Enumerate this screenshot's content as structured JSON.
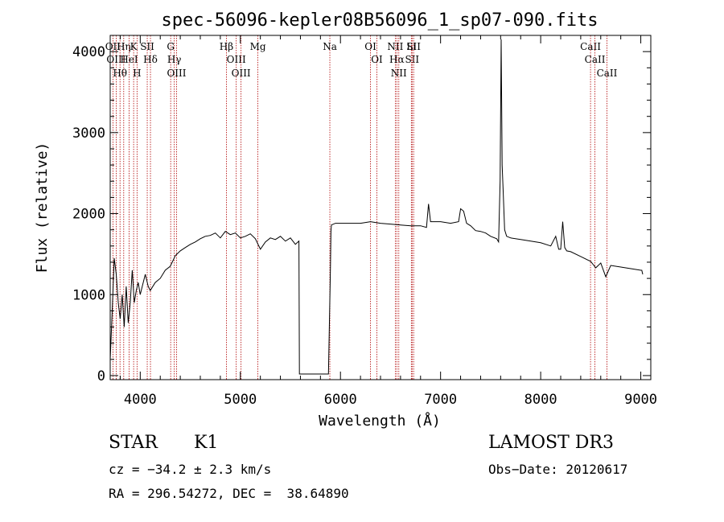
{
  "chart_data": {
    "type": "line",
    "title": "spec-56096-kepler08B56096_1_sp07-090.fits",
    "xlabel": "Wavelength (Å)",
    "ylabel": "Flux (relative)",
    "xlim": [
      3700,
      9100
    ],
    "ylim": [
      -50,
      4200
    ],
    "xticks": [
      4000,
      5000,
      6000,
      7000,
      8000,
      9000
    ],
    "xtick_labels": [
      "4000",
      "5000",
      "6000",
      "7000",
      "8000",
      "9000"
    ],
    "yticks": [
      0,
      1000,
      2000,
      3000,
      4000
    ],
    "ytick_labels": [
      "0",
      "1000",
      "2000",
      "3000",
      "4000"
    ],
    "series": [
      {
        "name": "flux",
        "x": [
          3700,
          3720,
          3740,
          3760,
          3780,
          3800,
          3820,
          3840,
          3860,
          3880,
          3900,
          3920,
          3940,
          3960,
          3980,
          4000,
          4020,
          4050,
          4080,
          4100,
          4150,
          4200,
          4250,
          4300,
          4350,
          4400,
          4450,
          4500,
          4550,
          4600,
          4650,
          4700,
          4750,
          4800,
          4850,
          4900,
          4950,
          5000,
          5050,
          5100,
          5150,
          5200,
          5250,
          5300,
          5350,
          5400,
          5450,
          5500,
          5550,
          5585,
          5590,
          5600,
          5700,
          5800,
          5880,
          5900,
          5905,
          5910,
          5950,
          6000,
          6100,
          6200,
          6300,
          6400,
          6500,
          6600,
          6700,
          6800,
          6860,
          6880,
          6900,
          7000,
          7100,
          7180,
          7200,
          7230,
          7260,
          7300,
          7350,
          7400,
          7450,
          7500,
          7560,
          7580,
          7595,
          7605,
          7615,
          7625,
          7640,
          7660,
          7700,
          7800,
          7900,
          8000,
          8100,
          8150,
          8180,
          8200,
          8220,
          8240,
          8260,
          8300,
          8400,
          8500,
          8550,
          8600,
          8650,
          8700,
          8800,
          8900,
          9000,
          9010,
          9020
        ],
        "y": [
          200,
          800,
          1450,
          1250,
          900,
          700,
          1000,
          600,
          1100,
          650,
          900,
          1300,
          900,
          1050,
          1150,
          1000,
          1100,
          1250,
          1100,
          1050,
          1150,
          1200,
          1300,
          1350,
          1480,
          1540,
          1580,
          1620,
          1650,
          1690,
          1720,
          1730,
          1760,
          1700,
          1780,
          1740,
          1760,
          1700,
          1720,
          1750,
          1690,
          1560,
          1650,
          1700,
          1680,
          1720,
          1660,
          1700,
          1620,
          1660,
          20,
          20,
          20,
          20,
          20,
          1350,
          1780,
          1860,
          1880,
          1880,
          1880,
          1880,
          1900,
          1880,
          1870,
          1860,
          1850,
          1850,
          1830,
          2120,
          1900,
          1900,
          1880,
          1900,
          2060,
          2030,
          1880,
          1850,
          1790,
          1780,
          1760,
          1720,
          1690,
          1650,
          2400,
          4150,
          2600,
          2300,
          1800,
          1720,
          1700,
          1680,
          1660,
          1640,
          1600,
          1720,
          1560,
          1560,
          1900,
          1580,
          1540,
          1530,
          1470,
          1410,
          1330,
          1390,
          1220,
          1360,
          1340,
          1320,
          1300,
          1300,
          1250
        ]
      }
    ],
    "line_markers": [
      {
        "label": "Hθ",
        "x": 3798
      },
      {
        "label": "OII",
        "x": 3727
      },
      {
        "label": "OIII",
        "x": 3760
      },
      {
        "label": "Hη",
        "x": 3835
      },
      {
        "label": "HeI",
        "x": 3889
      },
      {
        "label": "K",
        "x": 3934
      },
      {
        "label": "H",
        "x": 3968
      },
      {
        "label": "SII",
        "x": 4070
      },
      {
        "label": "Hδ",
        "x": 4102
      },
      {
        "label": "G",
        "x": 4304
      },
      {
        "label": "Hγ",
        "x": 4340
      },
      {
        "label": "OIII",
        "x": 4363
      },
      {
        "label": "Hβ",
        "x": 4861
      },
      {
        "label": "OIII",
        "x": 4959
      },
      {
        "label": "OIII",
        "x": 5007
      },
      {
        "label": "Mg",
        "x": 5175
      },
      {
        "label": "Na",
        "x": 5894
      },
      {
        "label": "OI",
        "x": 6300
      },
      {
        "label": "OI",
        "x": 6364
      },
      {
        "label": "NII",
        "x": 6548
      },
      {
        "label": "Hα",
        "x": 6563
      },
      {
        "label": "NII",
        "x": 6583
      },
      {
        "label": "Li",
        "x": 6708
      },
      {
        "label": "SII",
        "x": 6716
      },
      {
        "label": "SII",
        "x": 6731
      },
      {
        "label": "CaII",
        "x": 8498
      },
      {
        "label": "CaII",
        "x": 8542
      },
      {
        "label": "CaII",
        "x": 8662
      }
    ]
  },
  "info": {
    "object_class": "STAR",
    "subclass": "K1",
    "redshift": "cz = −34.2 ± 2.3 km/s",
    "coords": "RA = 296.54272, DEC =  38.64890",
    "survey": "LAMOST DR3",
    "obs_date": "Obs−Date: 20120617"
  }
}
